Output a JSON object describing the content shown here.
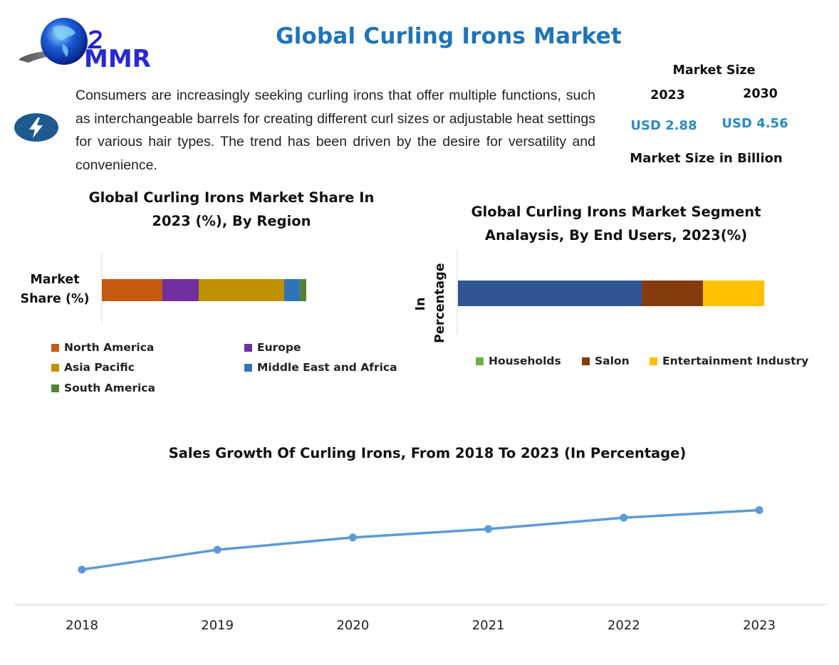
{
  "header": {
    "logo_text": "MMR",
    "title": "Global Curling Irons Market"
  },
  "intro": {
    "icon": "lightning-bolt-icon",
    "text": "Consumers are increasingly seeking curling irons that offer multiple functions, such as interchangeable barrels for creating different curl sizes or adjustable heat settings for various hair types. The trend has been driven by the desire for versatility and convenience."
  },
  "market_size": {
    "heading": "Market Size",
    "year_start": "2023",
    "year_end": "2030",
    "value_start": "USD 2.88",
    "value_end": "USD 4.56",
    "unit_note": "Market Size in Billion",
    "value_color": "#2a8ac6"
  },
  "chart_data": [
    {
      "type": "bar",
      "stacked": true,
      "orientation": "horizontal",
      "title_line1": "Global Curling Irons Market Share In",
      "title_line2": "2023 (%), By Region",
      "ylabel_line1": "Market",
      "ylabel_line2": "Share (%)",
      "categories": [
        "Market Share (%)"
      ],
      "series": [
        {
          "name": "North America",
          "values": [
            29.6
          ],
          "color": "#c55a11"
        },
        {
          "name": "Europe",
          "values": [
            17.8
          ],
          "color": "#7030a0"
        },
        {
          "name": "Asia Pacific",
          "values": [
            41.8
          ],
          "color": "#bf9000"
        },
        {
          "name": "Middle East and Africa",
          "values": [
            7.7
          ],
          "color": "#2e75b6"
        },
        {
          "name": "South America",
          "values": [
            3.1
          ],
          "color": "#548235"
        }
      ],
      "xlim": [
        0,
        100
      ],
      "grid": false,
      "legend_position": "bottom"
    },
    {
      "type": "bar",
      "stacked": true,
      "orientation": "horizontal",
      "title_line1": "Global Curling Irons Market Segment",
      "title_line2": "Analaysis, By End Users, 2023(%)",
      "ylabel_line1": "In",
      "ylabel_line2": "Percentage",
      "categories": [
        "In Percentage"
      ],
      "series": [
        {
          "name": "Households",
          "values": [
            60
          ],
          "color": "#2f5597",
          "legend_color": "#70ad47"
        },
        {
          "name": "Salon",
          "values": [
            20
          ],
          "color": "#843c0c"
        },
        {
          "name": "Entertainment Industry",
          "values": [
            20
          ],
          "color": "#ffc000"
        }
      ],
      "xlim": [
        0,
        100
      ],
      "grid": false,
      "legend_position": "bottom"
    },
    {
      "type": "line",
      "title": "Sales Growth Of Curling Irons, From 2018 To 2023 (In Percentage)",
      "x": [
        "2018",
        "2019",
        "2020",
        "2021",
        "2022",
        "2023"
      ],
      "series": [
        {
          "name": "Sales Growth",
          "values": [
            37,
            58,
            71,
            80,
            92,
            100
          ],
          "color": "#5b9bd5"
        }
      ],
      "ylim": [
        0,
        120
      ],
      "xlabel": "",
      "ylabel": "",
      "grid": false,
      "legend_position": "none"
    }
  ]
}
